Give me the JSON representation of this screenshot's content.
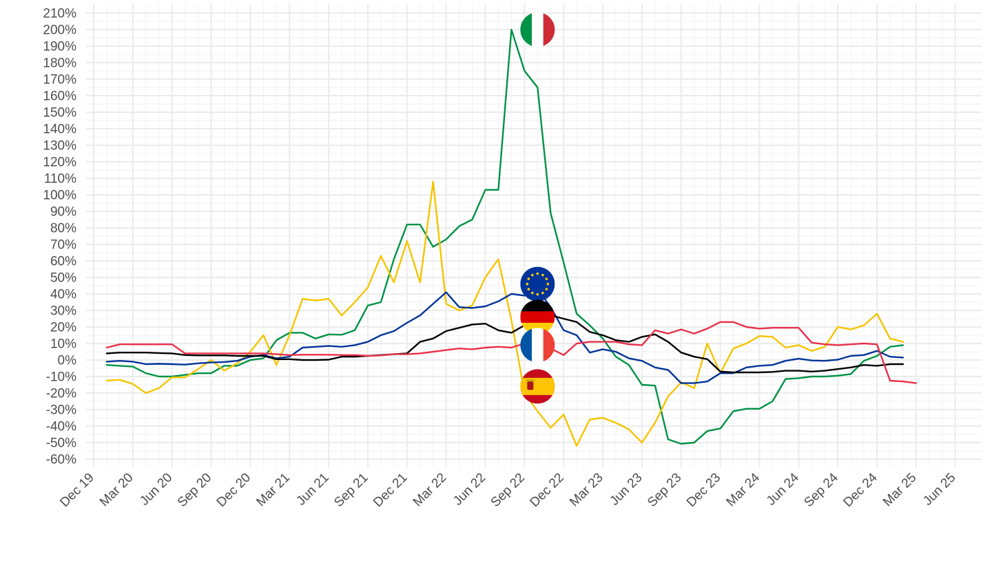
{
  "chart_data": {
    "type": "line",
    "title": "",
    "xlabel": "",
    "ylabel": "",
    "ylim": [
      -60,
      210
    ],
    "y_tick_step": 10,
    "y_tick_suffix": "%",
    "x_ticks": [
      "Dec 19",
      "Mar 20",
      "Jun 20",
      "Sep 20",
      "Dec 20",
      "Mar 21",
      "Jun 21",
      "Sep 21",
      "Dec 21",
      "Mar 22",
      "Jun 22",
      "Sep 22",
      "Dec 22",
      "Mar 23",
      "Jun 23",
      "Sep 23",
      "Dec 23",
      "Mar 24",
      "Jun 24",
      "Sep 24",
      "Dec 24",
      "Mar 25",
      "Jun 25"
    ],
    "x_start": "2020-01",
    "grid": true,
    "legend": "none",
    "series": [
      {
        "name": "",
        "color": "#009246",
        "icon": "italy-flag-icon",
        "values": [
          -3,
          -3.5,
          -4,
          -8,
          -10,
          -10,
          -9,
          -8,
          -8,
          -3.5,
          -3.5,
          0,
          1,
          12,
          16.5,
          16.5,
          13,
          15.5,
          15.3,
          18,
          33,
          35,
          61,
          82,
          82,
          68.5,
          73,
          81,
          85,
          103,
          103,
          200,
          175,
          165,
          89,
          59,
          28,
          21,
          13,
          2,
          -3,
          -15,
          -15.5,
          -48,
          -50.7,
          -50,
          -43,
          -41.5,
          -31,
          -29.5,
          -29.5,
          -25,
          -11.5,
          -11,
          -10,
          -10,
          -9.5,
          -8.5,
          -0.5,
          2.5,
          8,
          9
        ]
      },
      {
        "name": "",
        "color": "#f5c400",
        "icon": "spain-flag-icon",
        "values": [
          -12.5,
          -12,
          -14.5,
          -20,
          -17,
          -10.5,
          -10.5,
          -5.5,
          0,
          -6.5,
          -2,
          5,
          15,
          -3,
          15,
          37,
          36,
          37,
          27,
          35,
          44,
          63,
          47,
          72,
          47,
          108,
          34,
          30,
          33,
          50,
          61,
          24,
          -20,
          -31,
          -41,
          -33,
          -52,
          -36,
          -35,
          -38,
          -42,
          -50,
          -38,
          -22,
          -13.5,
          -17,
          10,
          -8,
          7,
          10,
          14.5,
          14,
          7.5,
          9,
          5.5,
          8,
          20,
          18.5,
          21,
          28,
          13,
          11
        ]
      },
      {
        "name": "",
        "color": "#003399",
        "icon": "eu-flag-icon",
        "values": [
          -1,
          -0.5,
          -1,
          -2.5,
          -2.3,
          -2.5,
          -2.8,
          -2,
          -1.5,
          -1.2,
          -0.5,
          2,
          3,
          1,
          2,
          7.5,
          8,
          8.5,
          8,
          9,
          11,
          15,
          17.5,
          22.5,
          27,
          34,
          41,
          32,
          31.5,
          32.5,
          35.5,
          40,
          39,
          43,
          32,
          18,
          15,
          4.5,
          6.5,
          5,
          1,
          -0.5,
          -4.5,
          -6,
          -14,
          -14,
          -13,
          -8,
          -8,
          -4.5,
          -3.5,
          -3,
          -0.5,
          0.8,
          -0.3,
          -0.5,
          0.2,
          2.5,
          3,
          5.5,
          2,
          1.5
        ]
      },
      {
        "name": "",
        "color": "#000000",
        "icon": "germany-flag-icon",
        "values": [
          4,
          4.5,
          4.5,
          4.5,
          4.2,
          4,
          3,
          2.8,
          2.8,
          2.8,
          2.5,
          2.5,
          2.5,
          0.5,
          0.5,
          0,
          0,
          0.2,
          2,
          2,
          2.5,
          3,
          3.5,
          4,
          11,
          13,
          17.5,
          19.5,
          21.5,
          22,
          18,
          16.5,
          21,
          27,
          27,
          25,
          23,
          17,
          15,
          12,
          11,
          14,
          15.5,
          11,
          4.5,
          2,
          0.5,
          -7,
          -7.5,
          -7.5,
          -7.5,
          -7.2,
          -6.5,
          -6.5,
          -7,
          -6.5,
          -5.5,
          -4.5,
          -3,
          -3.5,
          -2.5,
          -2.5
        ]
      },
      {
        "name": "",
        "color": "#e8304a",
        "icon": "france-flag-icon",
        "values": [
          7.5,
          9.5,
          9.5,
          9.5,
          9.5,
          9.5,
          4,
          4,
          4,
          4,
          4,
          4,
          4,
          3.5,
          3,
          3.2,
          3.2,
          3.2,
          3,
          3,
          2.5,
          2.8,
          3.5,
          3.5,
          4,
          5,
          6,
          7,
          6.5,
          7.5,
          8,
          7.5,
          10,
          8.5,
          7,
          3,
          10,
          11,
          11,
          11,
          9.5,
          9,
          18,
          16,
          18.5,
          16,
          19,
          23,
          23,
          20,
          19,
          19.5,
          19.5,
          19.5,
          10.5,
          9.5,
          9,
          9.5,
          10,
          9.5,
          -12.5,
          -13,
          -14
        ]
      }
    ],
    "markers": [
      {
        "icon": "italy-flag-icon",
        "value": 200,
        "colors": [
          "#009246",
          "#ffffff",
          "#ce2b37"
        ]
      },
      {
        "icon": "eu-flag-icon",
        "value": 46,
        "colors": [
          "#003399",
          "#ffcc00"
        ]
      },
      {
        "icon": "germany-flag-icon",
        "value": 26,
        "colors": [
          "#000000",
          "#dd0000",
          "#ffce00"
        ]
      },
      {
        "icon": "france-flag-icon",
        "value": 9,
        "colors": [
          "#0055a4",
          "#ffffff",
          "#ef4135"
        ]
      },
      {
        "icon": "spain-flag-icon",
        "value": -16,
        "colors": [
          "#c60b1e",
          "#ffc400"
        ]
      }
    ],
    "marker_date": "2022-10"
  }
}
